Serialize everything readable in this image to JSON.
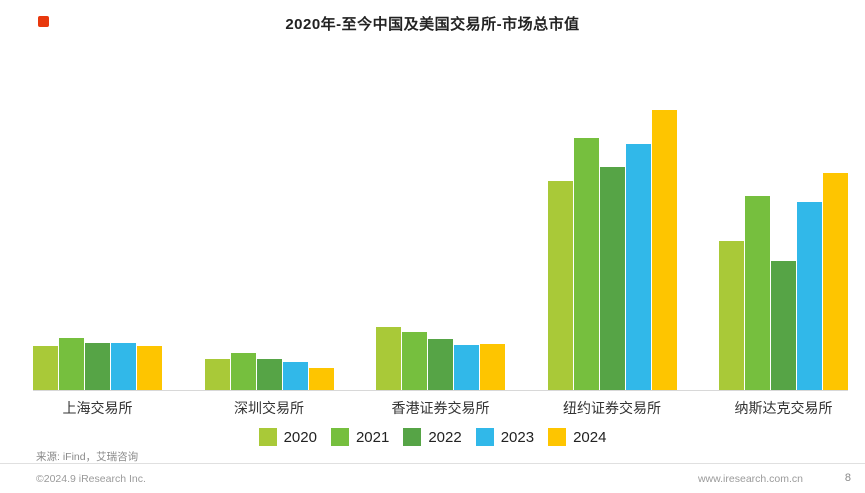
{
  "page": {
    "title": "2020年-至今中国及美国交易所-市场总市值",
    "footer": {
      "source": "来源: iFind，艾瑞咨询",
      "copyright": "©2024.9 iResearch Inc.",
      "website": "www.iresearch.com.cn",
      "page_number": "8"
    }
  },
  "chart_data": {
    "type": "bar",
    "title": "2020年-至今中国及美国交易所-市场总市值",
    "categories": [
      "上海交易所",
      "深圳交易所",
      "香港证券交易所",
      "纽约证券交易所",
      "纳斯达克交易所"
    ],
    "series": [
      {
        "name": "2020",
        "color": "#a9c938",
        "values": [
          4.4,
          3.1,
          6.3,
          20.9,
          14.9
        ]
      },
      {
        "name": "2021",
        "color": "#76bf3e",
        "values": [
          5.2,
          3.7,
          5.8,
          25.2,
          19.4
        ]
      },
      {
        "name": "2022",
        "color": "#56a446",
        "values": [
          4.7,
          3.1,
          5.1,
          22.3,
          12.9
        ]
      },
      {
        "name": "2023",
        "color": "#31b8e9",
        "values": [
          4.7,
          2.8,
          4.5,
          24.6,
          18.8
        ]
      },
      {
        "name": "2024",
        "color": "#fec500",
        "values": [
          4.4,
          2.2,
          4.6,
          28.0,
          21.7
        ]
      }
    ],
    "ylim": [
      0,
      28
    ],
    "xlabel": "",
    "ylabel": "",
    "grid": false,
    "legend_position": "bottom",
    "values_estimated_from_bar_heights": true
  }
}
